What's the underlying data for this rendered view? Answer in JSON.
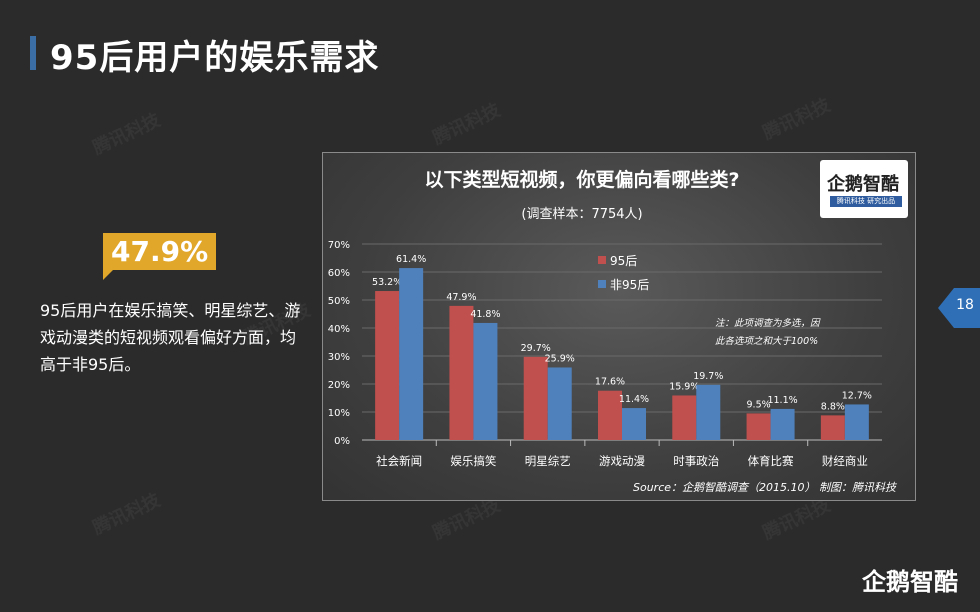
{
  "page": {
    "title": "95后用户的娱乐需求",
    "page_number": "18",
    "watermark_text": "腾讯科技",
    "footer_logo": "企鹅智酷"
  },
  "highlight": {
    "value": "47.9%",
    "description": "95后用户在娱乐搞笑、明星综艺、游戏动漫类的短视频观看偏好方面，均高于非95后。"
  },
  "logo": {
    "title": "企鹅智酷",
    "subtitle": "腾讯科技  研究出品"
  },
  "chart_data": {
    "type": "bar",
    "title": "以下类型短视频，你更偏向看哪些类?",
    "subtitle": "(调查样本：7754人)",
    "categories": [
      "社会新闻",
      "娱乐搞笑",
      "明星综艺",
      "游戏动漫",
      "时事政治",
      "体育比赛",
      "财经商业"
    ],
    "series": [
      {
        "name": "95后",
        "color": "#c0504d",
        "values": [
          53.2,
          47.9,
          29.7,
          17.6,
          15.9,
          9.5,
          8.8
        ],
        "labels": [
          "53.2%",
          "47.9%",
          "29.7%",
          "17.6%",
          "15.9%",
          "9.5%",
          "8.8%"
        ]
      },
      {
        "name": "非95后",
        "color": "#4f81bd",
        "values": [
          61.4,
          41.8,
          25.9,
          11.4,
          19.7,
          11.1,
          12.7
        ],
        "labels": [
          "61.4%",
          "41.8%",
          "25.9%",
          "11.4%",
          "19.7%",
          "11.1%",
          "12.7%"
        ]
      }
    ],
    "ylim": [
      0,
      70
    ],
    "yticks": [
      "0%",
      "10%",
      "20%",
      "30%",
      "40%",
      "50%",
      "60%",
      "70%"
    ],
    "grid": true,
    "legend": "top-center",
    "note_line1": "注：此项调查为多选，因",
    "note_line2": "此各选项之和大于100%",
    "source": "Source：企鹅智酷调查（2015.10）    制图：腾讯科技"
  }
}
